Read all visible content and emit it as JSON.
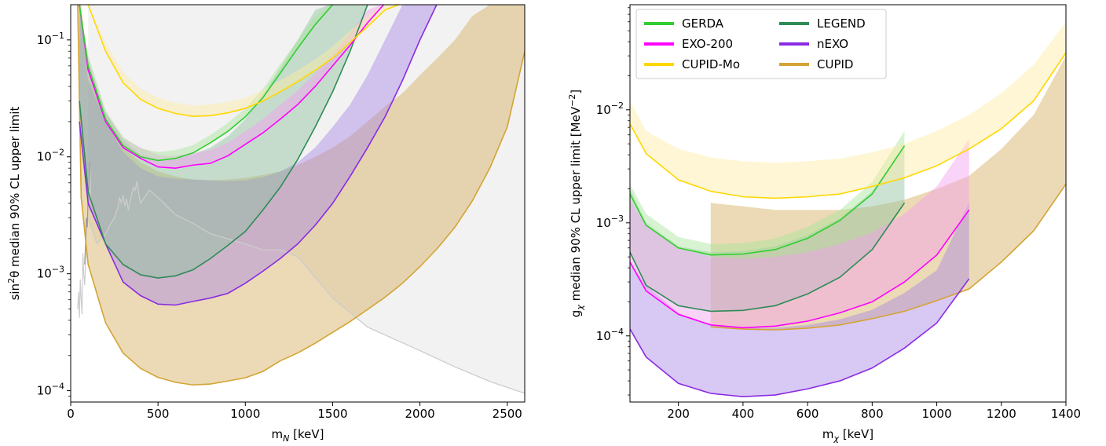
{
  "chart_data": [
    {
      "type": "line",
      "panel": "left",
      "xlabel_main": "m",
      "xlabel_sub": "N",
      "xlabel_tail": " [keV]",
      "ylabel_pre": "sin",
      "ylabel_sup": "2",
      "ylabel_post": "θ median 90% CL upper limit",
      "xlim": [
        0,
        2600
      ],
      "ylim": [
        8e-05,
        0.2
      ],
      "yscale": "log",
      "xticks": [
        0,
        500,
        1000,
        1500,
        2000,
        2500
      ],
      "ytick_labels": [
        {
          "base": "10",
          "exp": "−4",
          "value": 0.0001
        },
        {
          "base": "10",
          "exp": "−3",
          "value": 0.001
        },
        {
          "base": "10",
          "exp": "−2",
          "value": 0.01
        },
        {
          "base": "10",
          "exp": "−1",
          "value": 0.1
        }
      ],
      "excluded_region_color": "#f2f2f2",
      "series": [
        {
          "color": "#d2ad5a",
          "line_color": "#d4a434",
          "x": [
            40,
            60,
            100,
            200,
            300,
            400,
            500,
            600,
            700,
            800,
            900,
            1000,
            1100,
            1200,
            1300,
            1400,
            1500,
            1600,
            1700,
            1800,
            1900,
            2000,
            2100,
            2200,
            2300,
            2400,
            2500,
            2600
          ],
          "median": [
            0.2,
            0.0045,
            0.0012,
            0.00038,
            0.00021,
            0.000155,
            0.00013,
            0.000118,
            0.000112,
            0.000114,
            0.000121,
            0.000129,
            0.000146,
            0.00018,
            0.00021,
            0.000255,
            0.000315,
            0.00039,
            0.000495,
            0.00063,
            0.00083,
            0.00115,
            0.00165,
            0.0025,
            0.0042,
            0.008,
            0.018,
            0.08
          ],
          "upper": [
            0.2,
            0.2,
            0.05,
            0.02,
            0.012,
            0.009,
            0.0075,
            0.0068,
            0.0064,
            0.0063,
            0.0064,
            0.0066,
            0.007,
            0.0075,
            0.0085,
            0.01,
            0.012,
            0.015,
            0.02,
            0.027,
            0.035,
            0.05,
            0.07,
            0.1,
            0.16,
            0.2,
            0.2,
            0.2
          ]
        },
        {
          "color": "#a985e6",
          "line_color": "#8a2be2",
          "x": [
            50,
            100,
            200,
            300,
            400,
            500,
            600,
            700,
            800,
            900,
            1000,
            1100,
            1200,
            1300,
            1400,
            1500,
            1600,
            1700,
            1800,
            1900,
            2000,
            2100
          ],
          "median": [
            0.02,
            0.004,
            0.0018,
            0.00085,
            0.00065,
            0.00055,
            0.00054,
            0.00058,
            0.00062,
            0.00068,
            0.00083,
            0.00105,
            0.00135,
            0.0018,
            0.0026,
            0.004,
            0.0068,
            0.012,
            0.022,
            0.045,
            0.1,
            0.22
          ],
          "upper": [
            0.2,
            0.045,
            0.02,
            0.011,
            0.008,
            0.0068,
            0.0065,
            0.0064,
            0.0063,
            0.0062,
            0.0063,
            0.0067,
            0.0075,
            0.009,
            0.012,
            0.018,
            0.028,
            0.05,
            0.1,
            0.2,
            0.3,
            0.3
          ]
        },
        {
          "color": "#8fc29f",
          "line_color": "#2e8b57",
          "x": [
            50,
            100,
            200,
            300,
            400,
            500,
            600,
            700,
            800,
            900,
            1000,
            1100,
            1200,
            1300,
            1400,
            1500,
            1600,
            1700
          ],
          "median": [
            0.03,
            0.005,
            0.0018,
            0.0012,
            0.00098,
            0.00092,
            0.00096,
            0.00108,
            0.00135,
            0.00175,
            0.0023,
            0.0035,
            0.0055,
            0.0095,
            0.018,
            0.036,
            0.08,
            0.2
          ],
          "upper": [
            0.2,
            0.06,
            0.024,
            0.014,
            0.0105,
            0.0095,
            0.0097,
            0.0105,
            0.012,
            0.015,
            0.021,
            0.034,
            0.058,
            0.1,
            0.18,
            0.3,
            0.3,
            0.3
          ]
        },
        {
          "color": "#f59df0",
          "line_color": "#ff00ff",
          "x": [
            50,
            100,
            200,
            300,
            400,
            500,
            600,
            700,
            800,
            900,
            1000,
            1100,
            1200,
            1300,
            1400,
            1500,
            1600,
            1700,
            1800
          ],
          "median": [
            0.2,
            0.055,
            0.02,
            0.012,
            0.0097,
            0.0082,
            0.008,
            0.0085,
            0.0088,
            0.0102,
            0.0128,
            0.016,
            0.021,
            0.028,
            0.04,
            0.06,
            0.09,
            0.14,
            0.22
          ],
          "upper": [
            0.2,
            0.07,
            0.024,
            0.0145,
            0.012,
            0.0104,
            0.0102,
            0.0108,
            0.0114,
            0.0132,
            0.0165,
            0.021,
            0.028,
            0.037,
            0.052,
            0.075,
            0.115,
            0.18,
            0.28
          ]
        },
        {
          "color": "#a8e59a",
          "line_color": "#32cd32",
          "x": [
            50,
            100,
            200,
            300,
            400,
            500,
            600,
            700,
            800,
            900,
            1000,
            1100,
            1200,
            1300,
            1400,
            1500,
            1600
          ],
          "median": [
            0.2,
            0.06,
            0.021,
            0.0125,
            0.01,
            0.0093,
            0.0097,
            0.0108,
            0.0132,
            0.0165,
            0.022,
            0.032,
            0.052,
            0.085,
            0.135,
            0.2,
            0.28
          ],
          "upper": [
            0.2,
            0.075,
            0.025,
            0.0148,
            0.0118,
            0.011,
            0.0114,
            0.0126,
            0.0154,
            0.0195,
            0.026,
            0.038,
            0.062,
            0.1,
            0.16,
            0.25,
            0.3
          ]
        },
        {
          "color": "#fdeaa2",
          "line_color": "#ffd700",
          "x": [
            100,
            200,
            300,
            400,
            500,
            600,
            700,
            800,
            900,
            1000,
            1100,
            1200,
            1300,
            1400,
            1500,
            1600,
            1700,
            1800,
            1900
          ],
          "median": [
            0.2,
            0.08,
            0.043,
            0.031,
            0.026,
            0.0235,
            0.0222,
            0.0225,
            0.0238,
            0.026,
            0.03,
            0.036,
            0.044,
            0.055,
            0.07,
            0.095,
            0.13,
            0.18,
            0.25
          ],
          "upper": [
            0.2,
            0.095,
            0.053,
            0.038,
            0.032,
            0.029,
            0.0275,
            0.028,
            0.0295,
            0.032,
            0.037,
            0.045,
            0.055,
            0.068,
            0.088,
            0.12,
            0.16,
            0.22,
            0.3
          ]
        }
      ],
      "reference_line": {
        "color": "#cccccc",
        "x": [
          100,
          150,
          200,
          230,
          250,
          270,
          280,
          290,
          300,
          310,
          320,
          330,
          340,
          350,
          360,
          370,
          380,
          390,
          400,
          450,
          500,
          600,
          700,
          800,
          1000,
          1100,
          1200,
          1300,
          1500,
          1700,
          2000,
          2200,
          2400,
          2600
        ],
        "y": [
          0.003,
          0.0018,
          0.0022,
          0.0027,
          0.003,
          0.0037,
          0.0045,
          0.004,
          0.0047,
          0.0038,
          0.0044,
          0.0035,
          0.0042,
          0.0048,
          0.0055,
          0.0052,
          0.0062,
          0.0048,
          0.004,
          0.0052,
          0.0045,
          0.0032,
          0.0027,
          0.0022,
          0.0018,
          0.0016,
          0.0016,
          0.0014,
          0.00062,
          0.00035,
          0.00022,
          0.00016,
          0.00012,
          9.5e-05
        ]
      },
      "spike_lines": [
        {
          "color": "#cccccc",
          "x": [
            40,
            45,
            50,
            55,
            60,
            65,
            70,
            75,
            80,
            85,
            90,
            95,
            100,
            105,
            110,
            115
          ],
          "y": [
            0.0005,
            0.0007,
            0.00042,
            0.0009,
            0.0006,
            0.00045,
            0.0015,
            0.001,
            0.0008,
            0.0012,
            0.003,
            0.0025,
            0.006,
            0.0045,
            0.009,
            0.004
          ]
        },
        {
          "color": "#999999",
          "x": [
            80,
            85,
            90,
            95,
            100,
            105,
            110
          ],
          "y": [
            0.0012,
            0.0018,
            0.003,
            0.0025,
            0.0045,
            0.006,
            0.009
          ]
        }
      ]
    },
    {
      "type": "line",
      "panel": "right",
      "xlabel_main": "m",
      "xlabel_sub": "χ",
      "xlabel_tail": " [keV]",
      "ylabel_pre": "g",
      "ylabel_sub": "χ",
      "ylabel_post": " median 90% CL upper limit [MeV",
      "ylabel_sup": "−2",
      "ylabel_close": "]",
      "xlim": [
        50,
        1400
      ],
      "ylim": [
        2.6e-05,
        0.085
      ],
      "yscale": "log",
      "xticks": [
        200,
        400,
        600,
        800,
        1000,
        1200,
        1400
      ],
      "ytick_labels": [
        {
          "base": "10",
          "exp": "−4",
          "value": 0.0001
        },
        {
          "base": "10",
          "exp": "−3",
          "value": 0.001
        },
        {
          "base": "10",
          "exp": "−2",
          "value": 0.01
        }
      ],
      "legend": {
        "placement": "top-left",
        "entries": [
          {
            "label": "GERDA",
            "color": "#32cd32"
          },
          {
            "label": "LEGEND",
            "color": "#2e8b57"
          },
          {
            "label": "EXO-200",
            "color": "#ff00ff"
          },
          {
            "label": "nEXO",
            "color": "#8a2be2"
          },
          {
            "label": "CUPID-Mo",
            "color": "#ffd700"
          },
          {
            "label": "CUPID",
            "color": "#d4a434"
          }
        ]
      },
      "series": [
        {
          "name": "CUPID",
          "color": "#d2ad5a",
          "line_color": "#d4a434",
          "x": [
            300,
            400,
            500,
            600,
            700,
            800,
            900,
            1000,
            1100,
            1200,
            1300,
            1400
          ],
          "median": [
            0.00012,
            0.000115,
            0.000113,
            0.000117,
            0.000125,
            0.000142,
            0.000165,
            0.000205,
            0.00026,
            0.00045,
            0.00085,
            0.0022
          ],
          "upper": [
            0.0015,
            0.0014,
            0.0013,
            0.0013,
            0.0013,
            0.0014,
            0.0016,
            0.002,
            0.0026,
            0.0045,
            0.009,
            0.03
          ]
        },
        {
          "name": "nEXO",
          "color": "#a985e6",
          "line_color": "#8a2be2",
          "x": [
            50,
            100,
            200,
            300,
            400,
            500,
            600,
            700,
            800,
            900,
            1000,
            1100
          ],
          "median": [
            0.000115,
            6.5e-05,
            3.8e-05,
            3.1e-05,
            2.9e-05,
            3e-05,
            3.4e-05,
            4e-05,
            5.2e-05,
            7.8e-05,
            0.00013,
            0.00032
          ],
          "upper": [
            0.00045,
            0.00028,
            0.00016,
            0.000125,
            0.000118,
            0.000118,
            0.000125,
            0.00014,
            0.00017,
            0.00024,
            0.00038,
            0.0015
          ]
        },
        {
          "name": "LEGEND",
          "color": "#8fc29f",
          "line_color": "#2e8b57",
          "x": [
            50,
            100,
            200,
            300,
            400,
            500,
            600,
            700,
            800,
            900
          ],
          "median": [
            0.00055,
            0.00028,
            0.000185,
            0.000165,
            0.000168,
            0.000185,
            0.000235,
            0.00033,
            0.00058,
            0.0015
          ],
          "upper": [
            0.002,
            0.001,
            0.00062,
            0.00055,
            0.00056,
            0.00062,
            0.00078,
            0.0011,
            0.0019,
            0.0048
          ]
        },
        {
          "name": "EXO-200",
          "color": "#f59df0",
          "line_color": "#ff00ff",
          "x": [
            50,
            100,
            200,
            300,
            400,
            500,
            600,
            700,
            800,
            900,
            1000,
            1100
          ],
          "median": [
            0.00045,
            0.00025,
            0.000155,
            0.000125,
            0.000118,
            0.000122,
            0.000135,
            0.00016,
            0.0002,
            0.0003,
            0.00052,
            0.0013
          ],
          "upper": [
            0.0016,
            0.00095,
            0.0006,
            0.0005,
            0.00048,
            0.0005,
            0.00055,
            0.00065,
            0.00082,
            0.0012,
            0.0021,
            0.0055
          ]
        },
        {
          "name": "GERDA",
          "color": "#a8e59a",
          "line_color": "#32cd32",
          "x": [
            50,
            100,
            200,
            300,
            400,
            500,
            600,
            700,
            800,
            900
          ],
          "median": [
            0.0018,
            0.00095,
            0.0006,
            0.00052,
            0.00053,
            0.00058,
            0.00073,
            0.00105,
            0.0018,
            0.0048
          ],
          "upper": [
            0.0022,
            0.0012,
            0.00075,
            0.00065,
            0.00066,
            0.00073,
            0.00092,
            0.0013,
            0.0023,
            0.0065
          ]
        },
        {
          "name": "CUPID-Mo",
          "color": "#fdeaa2",
          "line_color": "#ffd700",
          "x": [
            50,
            100,
            200,
            300,
            400,
            500,
            600,
            700,
            800,
            900,
            1000,
            1100,
            1200,
            1300,
            1400
          ],
          "median": [
            0.0075,
            0.0041,
            0.0024,
            0.0019,
            0.0017,
            0.00165,
            0.0017,
            0.0018,
            0.0021,
            0.0025,
            0.0032,
            0.0045,
            0.0068,
            0.012,
            0.032
          ],
          "upper": [
            0.012,
            0.0065,
            0.0045,
            0.0038,
            0.0035,
            0.0034,
            0.0035,
            0.0037,
            0.0042,
            0.005,
            0.0065,
            0.009,
            0.014,
            0.025,
            0.06
          ]
        }
      ]
    }
  ]
}
